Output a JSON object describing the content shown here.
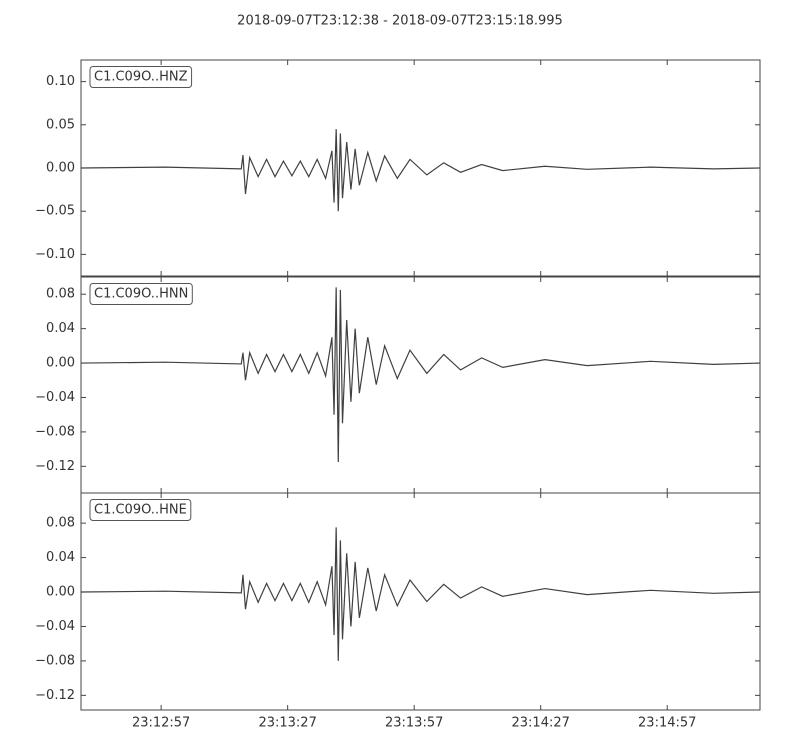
{
  "title": "2018-09-07T23:12:38  -  2018-09-07T23:15:18.995",
  "chart_data": [
    {
      "type": "line",
      "label": "C1.C09O..HNZ",
      "x": [
        0,
        20,
        38,
        38.4,
        39,
        40,
        42,
        44,
        46,
        48,
        50,
        52,
        54,
        56,
        58,
        59.5,
        60,
        60.5,
        61,
        61.5,
        62,
        63,
        64,
        65,
        66,
        68,
        70,
        72,
        75,
        78,
        82,
        86,
        90,
        95,
        100,
        110,
        120,
        135,
        150,
        161
      ],
      "series": [
        {
          "color": "#404040",
          "values": [
            0,
            0.001,
            -0.001,
            0.015,
            -0.03,
            0.012,
            -0.01,
            0.01,
            -0.01,
            0.008,
            -0.009,
            0.008,
            -0.01,
            0.01,
            -0.012,
            0.02,
            -0.04,
            0.045,
            -0.05,
            0.04,
            -0.035,
            0.03,
            -0.025,
            0.022,
            -0.02,
            0.018,
            -0.015,
            0.014,
            -0.012,
            0.01,
            -0.008,
            0.006,
            -0.005,
            0.004,
            -0.003,
            0.002,
            -0.0015,
            0.001,
            -0.001,
            0
          ]
        }
      ],
      "xlim": [
        0,
        160.995
      ],
      "ylim": [
        -0.125,
        0.125
      ],
      "yticks": [
        {
          "value": -0.1,
          "label": "−0.10"
        },
        {
          "value": -0.05,
          "label": "−0.05"
        },
        {
          "value": 0,
          "label": "0.00"
        },
        {
          "value": 0.05,
          "label": "0.05"
        },
        {
          "value": 0.1,
          "label": "0.10"
        }
      ]
    },
    {
      "type": "line",
      "label": "C1.C09O..HNN",
      "x": [
        0,
        20,
        38,
        38.4,
        39,
        40,
        42,
        44,
        46,
        48,
        50,
        52,
        54,
        56,
        58,
        59.5,
        60,
        60.5,
        61,
        61.5,
        62,
        63,
        64,
        65,
        66,
        68,
        70,
        72,
        75,
        78,
        82,
        86,
        90,
        95,
        100,
        110,
        120,
        135,
        150,
        161
      ],
      "series": [
        {
          "color": "#404040",
          "values": [
            0,
            0.001,
            -0.001,
            0.012,
            -0.02,
            0.012,
            -0.012,
            0.01,
            -0.01,
            0.01,
            -0.01,
            0.01,
            -0.012,
            0.012,
            -0.015,
            0.03,
            -0.06,
            0.088,
            -0.115,
            0.085,
            -0.07,
            0.05,
            -0.045,
            0.04,
            -0.035,
            0.03,
            -0.025,
            0.02,
            -0.018,
            0.015,
            -0.012,
            0.01,
            -0.008,
            0.006,
            -0.005,
            0.004,
            -0.003,
            0.002,
            -0.0015,
            0
          ]
        }
      ],
      "xlim": [
        0,
        160.995
      ],
      "ylim": [
        -0.151,
        0.1
      ],
      "yticks": [
        {
          "value": -0.12,
          "label": "−0.12"
        },
        {
          "value": -0.08,
          "label": "−0.08"
        },
        {
          "value": -0.04,
          "label": "−0.04"
        },
        {
          "value": 0,
          "label": "0.00"
        },
        {
          "value": 0.04,
          "label": "0.04"
        },
        {
          "value": 0.08,
          "label": "0.08"
        }
      ]
    },
    {
      "type": "line",
      "label": "C1.C09O..HNE",
      "x": [
        0,
        20,
        38,
        38.4,
        39,
        40,
        42,
        44,
        46,
        48,
        50,
        52,
        54,
        56,
        58,
        59.5,
        60,
        60.5,
        61,
        61.5,
        62,
        63,
        64,
        65,
        66,
        68,
        70,
        72,
        75,
        78,
        82,
        86,
        90,
        95,
        100,
        110,
        120,
        135,
        150,
        161
      ],
      "series": [
        {
          "color": "#404040",
          "values": [
            0,
            0.001,
            -0.001,
            0.02,
            -0.02,
            0.012,
            -0.012,
            0.01,
            -0.01,
            0.01,
            -0.01,
            0.01,
            -0.012,
            0.012,
            -0.015,
            0.03,
            -0.05,
            0.075,
            -0.08,
            0.06,
            -0.055,
            0.045,
            -0.04,
            0.035,
            -0.03,
            0.028,
            -0.022,
            0.02,
            -0.016,
            0.014,
            -0.011,
            0.009,
            -0.007,
            0.006,
            -0.005,
            0.004,
            -0.003,
            0.002,
            -0.0015,
            0
          ]
        }
      ],
      "xlim": [
        0,
        160.995
      ],
      "ylim": [
        -0.137,
        0.115
      ],
      "xticks": [
        {
          "value": 19,
          "label": "23:12:57"
        },
        {
          "value": 49,
          "label": "23:13:27"
        },
        {
          "value": 79,
          "label": "23:13:57"
        },
        {
          "value": 109,
          "label": "23:14:27"
        },
        {
          "value": 139,
          "label": "23:14:57"
        }
      ],
      "yticks": [
        {
          "value": -0.12,
          "label": "−0.12"
        },
        {
          "value": -0.08,
          "label": "−0.08"
        },
        {
          "value": -0.04,
          "label": "−0.04"
        },
        {
          "value": 0,
          "label": "0.00"
        },
        {
          "value": 0.04,
          "label": "0.04"
        },
        {
          "value": 0.08,
          "label": "0.08"
        }
      ]
    }
  ]
}
